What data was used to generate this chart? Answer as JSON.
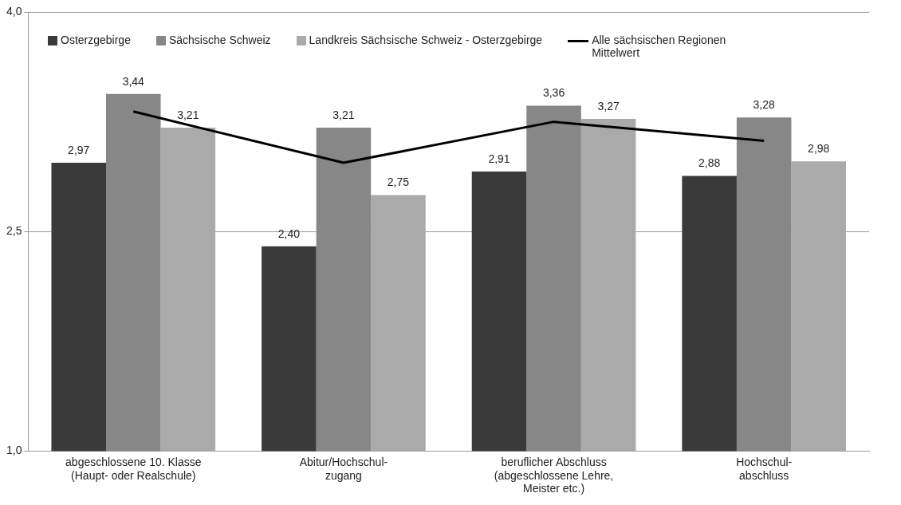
{
  "chart_data": {
    "type": "bar",
    "categories": [
      "abgeschlossene 10. Klasse\n(Haupt- oder Realschule)",
      "Abitur/Hochschul-\nzugang",
      "beruflicher Abschluss\n(abgeschlossene Lehre,\nMeister etc.)",
      "Hochschul-\nabschluss"
    ],
    "series": [
      {
        "name": "Osterzgebirge",
        "color": "#3a3a3a",
        "values": [
          2.97,
          2.4,
          2.91,
          2.88
        ],
        "value_labels": [
          "2,97",
          "2,40",
          "2,91",
          "2,88"
        ]
      },
      {
        "name": "Sächsische Schweiz",
        "color": "#878787",
        "values": [
          3.44,
          3.21,
          3.36,
          3.28
        ],
        "value_labels": [
          "3,44",
          "3,21",
          "3,36",
          "3,28"
        ]
      },
      {
        "name": "Landkreis Sächsische Schweiz - Osterzgebirge",
        "color": "#aaaaaa",
        "values": [
          3.21,
          2.75,
          3.27,
          2.98
        ],
        "value_labels": [
          "3,21",
          "2,75",
          "3,27",
          "2,98"
        ]
      },
      {
        "name": "Alle sächsischen Regionen Mittelwert",
        "type": "line",
        "color": "#000000",
        "values": [
          3.32,
          2.97,
          3.25,
          3.12
        ]
      }
    ],
    "ylim": [
      1,
      4
    ],
    "yticks": [
      {
        "value": 1,
        "label": "1,0"
      },
      {
        "value": 2.5,
        "label": "2,5"
      },
      {
        "value": 4,
        "label": "4,0"
      }
    ],
    "grid": "y",
    "legend": "top",
    "marker": "none"
  }
}
